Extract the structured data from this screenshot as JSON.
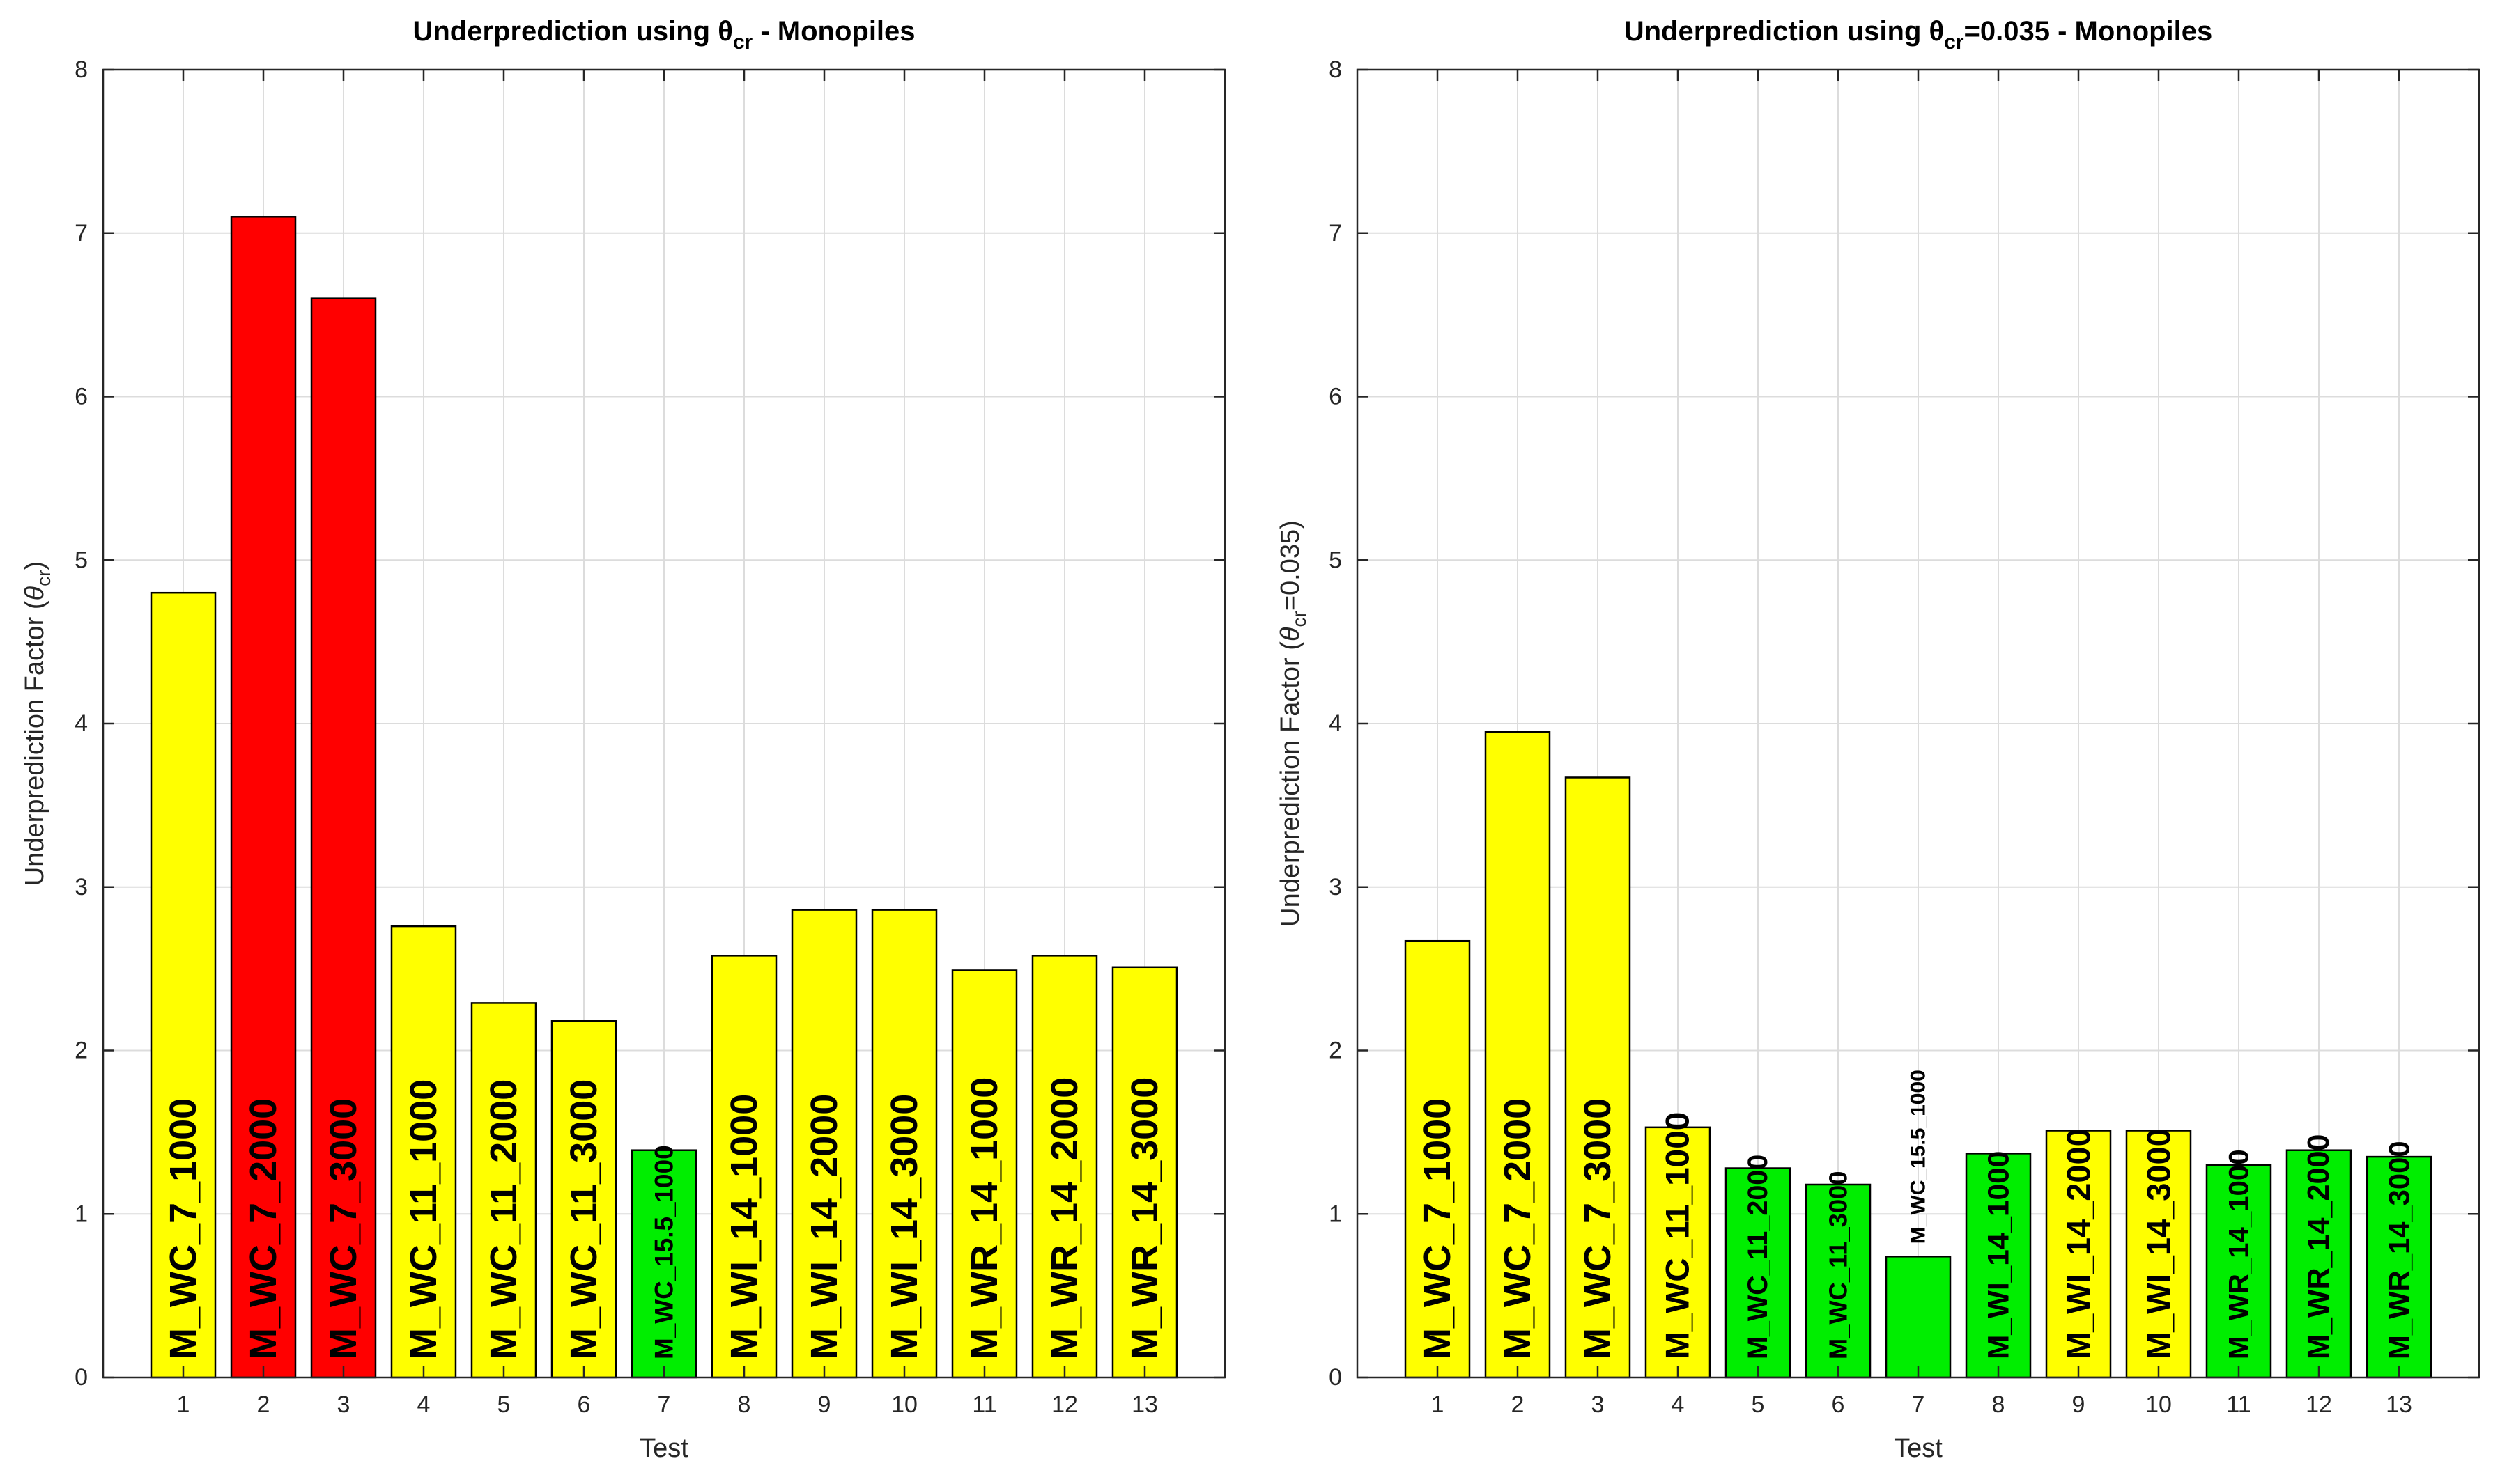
{
  "chart_data": [
    {
      "type": "bar",
      "title": "Underprediction using θ",
      "title_subscript": "cr",
      "title_suffix": " - Monopiles",
      "xlabel": "Test",
      "ylabel_prefix": "Underprediction Factor (",
      "ylabel_symbol": "θ",
      "ylabel_subscript": "cr",
      "ylabel_suffix": ")",
      "ylim": [
        0,
        8
      ],
      "yticks": [
        0,
        1,
        2,
        3,
        4,
        5,
        6,
        7,
        8
      ],
      "xlim": [
        0,
        14
      ],
      "grid": true,
      "categories": [
        1,
        2,
        3,
        4,
        5,
        6,
        7,
        8,
        9,
        10,
        11,
        12,
        13
      ],
      "values": [
        4.8,
        7.1,
        6.6,
        2.76,
        2.29,
        2.18,
        1.39,
        2.58,
        2.86,
        2.86,
        2.49,
        2.58,
        2.51
      ],
      "labels": [
        "M_WC_7_1000",
        "M_WC_7_2000",
        "M_WC_7_3000",
        "M_WC_11_1000",
        "M_WC_11_2000",
        "M_WC_11_3000",
        "M_WC_15.5_1000",
        "M_WI_14_1000",
        "M_WI_14_2000",
        "M_WI_14_3000",
        "M_WR_14_1000",
        "M_WR_14_2000",
        "M_WR_14_3000"
      ],
      "colors": [
        "#ffff00",
        "#ff0000",
        "#ff0000",
        "#ffff00",
        "#ffff00",
        "#ffff00",
        "#00ee00",
        "#ffff00",
        "#ffff00",
        "#ffff00",
        "#ffff00",
        "#ffff00",
        "#ffff00"
      ],
      "label_colors": [
        "#000000",
        "#ffffff",
        "#ffffff",
        "#000000",
        "#000000",
        "#000000",
        "#000000",
        "#000000",
        "#000000",
        "#000000",
        "#000000",
        "#000000",
        "#000000"
      ]
    },
    {
      "type": "bar",
      "title": "Underprediction using θ",
      "title_subscript": "cr",
      "title_suffix": "=0.035 - Monopiles",
      "xlabel": "Test",
      "ylabel_prefix": "Underprediction Factor (",
      "ylabel_symbol": "θ",
      "ylabel_subscript": "cr",
      "ylabel_suffix": "=0.035)",
      "ylim": [
        0,
        8
      ],
      "yticks": [
        0,
        1,
        2,
        3,
        4,
        5,
        6,
        7,
        8
      ],
      "xlim": [
        0,
        14
      ],
      "grid": true,
      "categories": [
        1,
        2,
        3,
        4,
        5,
        6,
        7,
        8,
        9,
        10,
        11,
        12,
        13
      ],
      "values": [
        2.67,
        3.95,
        3.67,
        1.53,
        1.28,
        1.18,
        0.74,
        1.37,
        1.51,
        1.51,
        1.3,
        1.39,
        1.35
      ],
      "labels": [
        "M_WC_7_1000",
        "M_WC_7_2000",
        "M_WC_7_3000",
        "M_WC_11_1000",
        "M_WC_11_2000",
        "M_WC_11_3000",
        "M_WC_15.5_1000",
        "M_WI_14_1000",
        "M_WI_14_2000",
        "M_WI_14_3000",
        "M_WR_14_1000",
        "M_WR_14_2000",
        "M_WR_14_3000"
      ],
      "colors": [
        "#ffff00",
        "#ffff00",
        "#ffff00",
        "#ffff00",
        "#00ee00",
        "#00ee00",
        "#00ee00",
        "#00ee00",
        "#ffff00",
        "#ffff00",
        "#00ee00",
        "#00ee00",
        "#00ee00"
      ],
      "label_colors": [
        "#000000",
        "#000000",
        "#000000",
        "#000000",
        "#000000",
        "#000000",
        "#000000",
        "#000000",
        "#000000",
        "#000000",
        "#000000",
        "#000000",
        "#000000"
      ]
    }
  ]
}
